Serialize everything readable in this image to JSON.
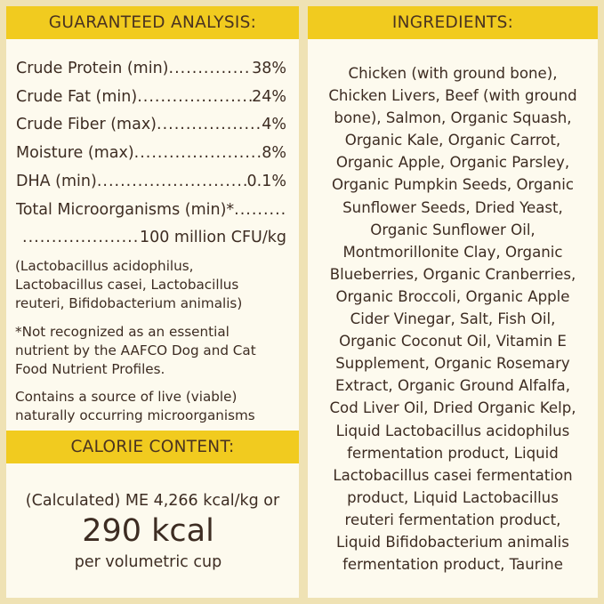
{
  "analysis": {
    "title": "GUARANTEED ANALYSIS:",
    "rows": [
      {
        "label": "Crude Protein (min)",
        "value": "38%"
      },
      {
        "label": "Crude Fat (min)",
        "value": "24%"
      },
      {
        "label": "Crude Fiber (max)",
        "value": "4%"
      },
      {
        "label": "Moisture (max)",
        "value": "8%"
      },
      {
        "label": "DHA (min) ",
        "value": "0.1%"
      },
      {
        "label": "Total Microorganisms (min)*",
        "value": ""
      },
      {
        "label": "",
        "value": "100 million CFU/kg"
      }
    ],
    "strains": [
      "(Lactobacillus acidophilus,",
      "Lactobacillus casei, Lactobacillus",
      "reuteri, Bifidobacterium animalis)"
    ],
    "footnote": [
      "*Not recognized as an essential",
      "nutrient by the AAFCO Dog and Cat",
      "Food Nutrient Profiles."
    ],
    "live": [
      "Contains a source of live (viable)",
      "naturally occurring microorganisms"
    ]
  },
  "calorie": {
    "title": "CALORIE CONTENT:",
    "line1": "(Calculated) ME 4,266 kcal/kg or",
    "big": "290 kcal",
    "line3": "per volumetric cup"
  },
  "ingredients": {
    "title": "INGREDIENTS:",
    "lines": [
      "Chicken (with ground bone),",
      "Chicken Livers, Beef (with ground",
      "bone), Salmon, Organic Squash,",
      "Organic Kale, Organic Carrot,",
      "Organic Apple, Organic Parsley,",
      "Organic Pumpkin Seeds, Organic",
      "Sunflower Seeds, Dried Yeast,",
      "Organic Sunflower Oil,",
      "Montmorillonite Clay, Organic",
      "Blueberries, Organic Cranberries,",
      "Organic Broccoli, Organic Apple",
      "Cider Vinegar, Salt, Fish Oil,",
      "Organic Coconut Oil, Vitamin E",
      "Supplement, Organic Rosemary",
      "Extract, Organic Ground Alfalfa,",
      "Cod Liver Oil, Dried Organic Kelp,",
      "Liquid Lactobacillus acidophilus",
      "fermentation product, Liquid",
      "Lactobacillus casei fermentation",
      "product, Liquid Lactobacillus",
      "reuteri fermentation product,",
      "Liquid Bifidobacterium animalis",
      "fermentation product, Taurine"
    ]
  },
  "colors": {
    "header": "#f1cb1f",
    "panel": "#fdfaee",
    "background": "#efe2b4",
    "text": "#3d2c22"
  }
}
